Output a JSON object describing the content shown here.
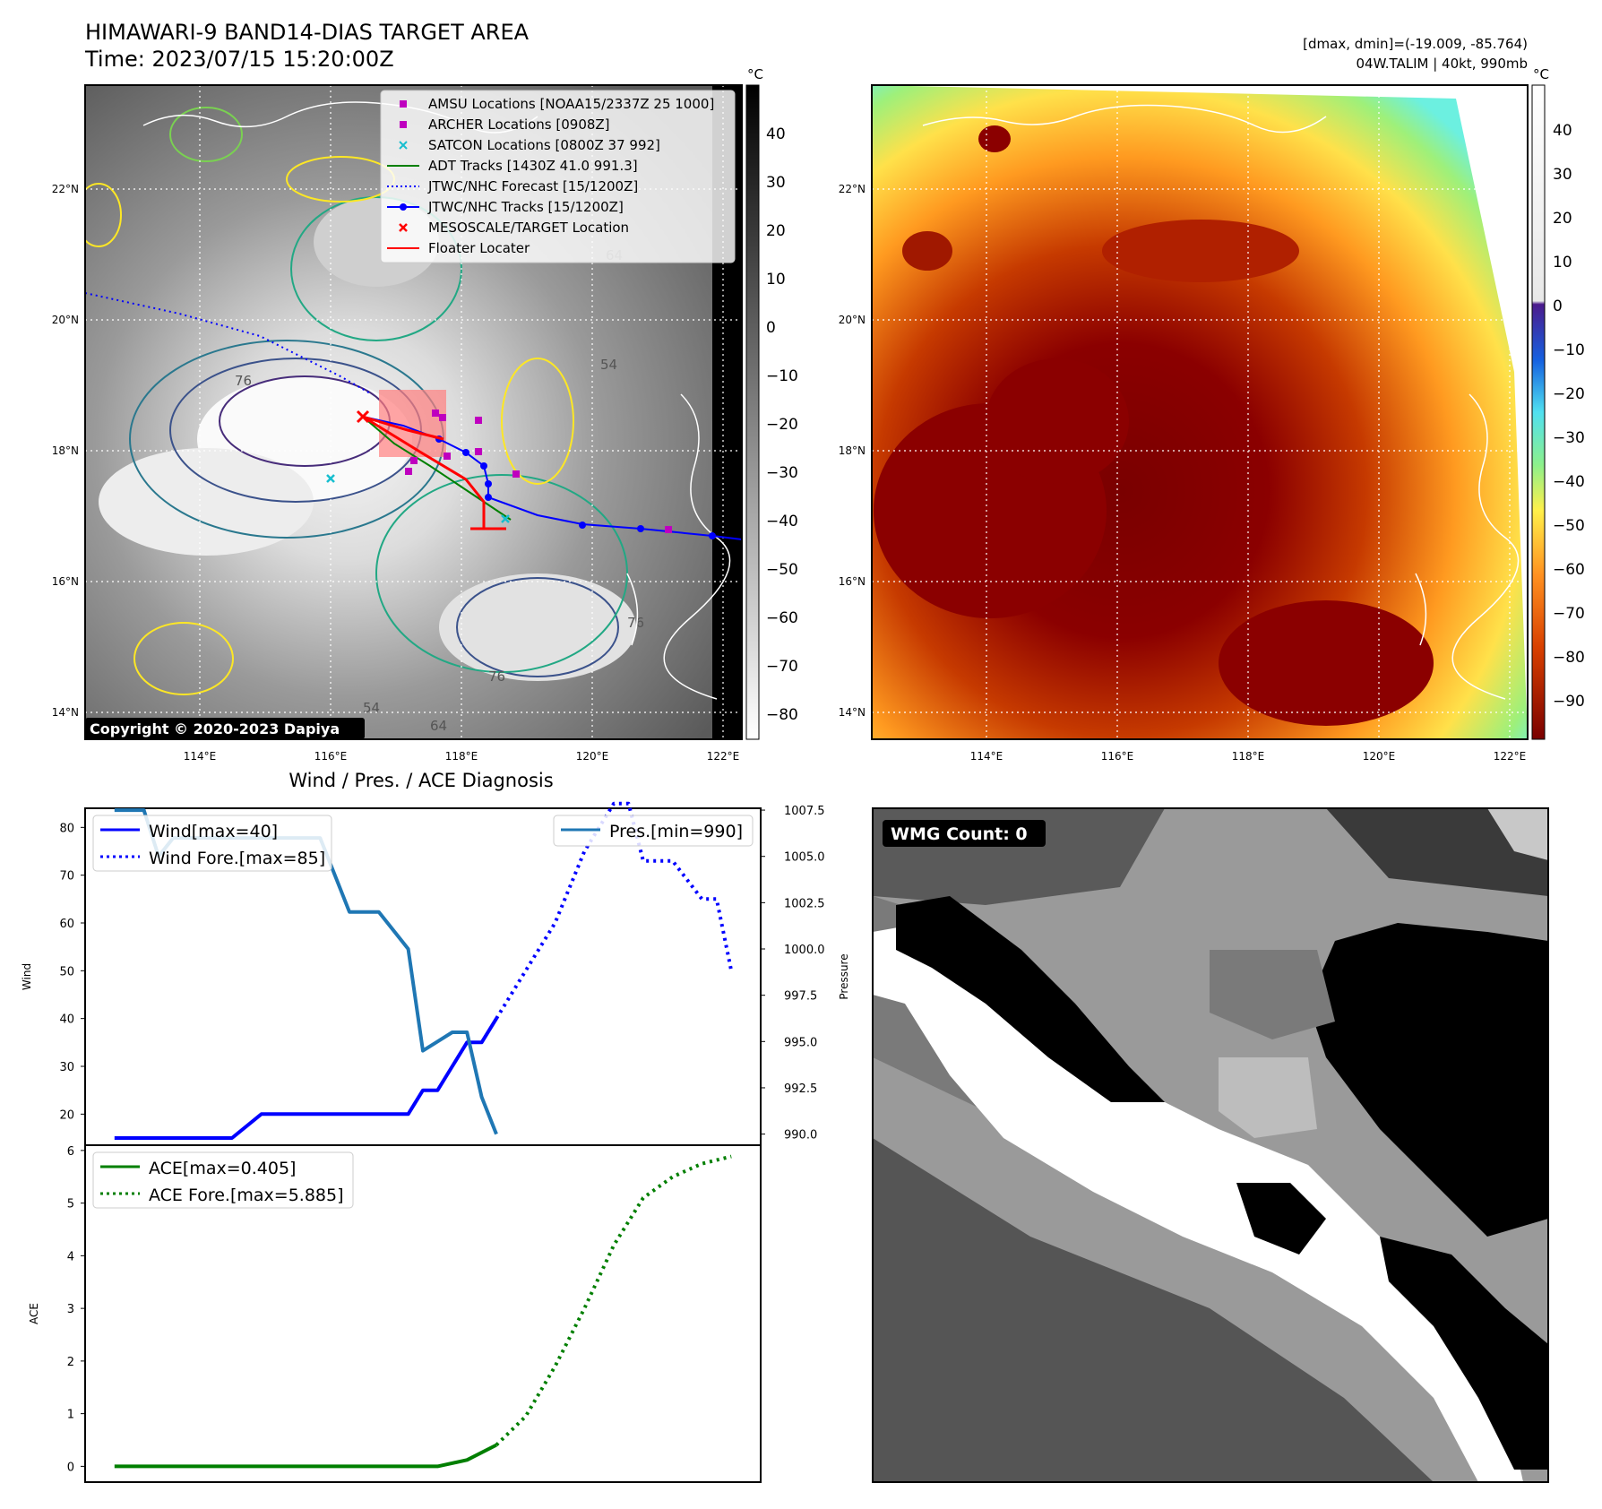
{
  "header": {
    "title": "HIMAWARI-9 BAND14-DIAS TARGET AREA",
    "time": "Time: 2023/07/15 15:20:00Z",
    "dminmax": "[dmax, dmin]=(-19.009, -85.764)",
    "storm": "04W.TALIM | 40kt, 990mb"
  },
  "map_left": {
    "lon_ticks": [
      "114°E",
      "116°E",
      "118°E",
      "120°E",
      "122°E"
    ],
    "lat_ticks": [
      "22°N",
      "20°N",
      "18°N",
      "16°N",
      "14°N"
    ],
    "colorbar_unit": "°C",
    "colorbar_ticks": [
      "40",
      "30",
      "20",
      "10",
      "0",
      "−10",
      "−20",
      "−30",
      "−40",
      "−50",
      "−60",
      "−70",
      "−80"
    ],
    "copyright": "Copyright © 2020-2023 Dapiya",
    "contour_labels": [
      "76",
      "64",
      "54",
      "76",
      "64",
      "54",
      "76"
    ],
    "legend": [
      {
        "label": "AMSU Locations [NOAA15/2337Z 25 1000]",
        "color": "#bf00bf",
        "marker": "square"
      },
      {
        "label": "ARCHER Locations [0908Z]",
        "color": "#bf00bf",
        "marker": "square"
      },
      {
        "label": "SATCON Locations [0800Z 37 992]",
        "color": "#17becf",
        "marker": "x"
      },
      {
        "label": "ADT Tracks [1430Z 41.0 991.3]",
        "color": "#007f00",
        "marker": "line"
      },
      {
        "label": "JTWC/NHC Forecast [15/1200Z]",
        "color": "#0000ff",
        "marker": "dotted"
      },
      {
        "label": "JTWC/NHC Tracks [15/1200Z]",
        "color": "#0000ff",
        "marker": "line-dot"
      },
      {
        "label": "MESOSCALE/TARGET Location",
        "color": "#ff0000",
        "marker": "x"
      },
      {
        "label": "Floater Locater",
        "color": "#ff0000",
        "marker": "line"
      }
    ]
  },
  "map_right": {
    "lon_ticks": [
      "114°E",
      "116°E",
      "118°E",
      "120°E",
      "122°E"
    ],
    "lat_ticks": [
      "22°N",
      "20°N",
      "18°N",
      "16°N",
      "14°N"
    ],
    "colorbar_unit": "°C",
    "colorbar_ticks": [
      "40",
      "30",
      "20",
      "10",
      "0",
      "−10",
      "−20",
      "−30",
      "−40",
      "−50",
      "−60",
      "−70",
      "−80",
      "−90"
    ]
  },
  "wmg": {
    "label": "WMG Count: 0"
  },
  "chart_data": [
    {
      "type": "line",
      "title": "Wind / Pres. / ACE Diagnosis",
      "ylabel": "Wind",
      "y2label": "Pressure",
      "ylim": [
        13.5,
        84
      ],
      "y2lim": [
        989.4,
        1007.6
      ],
      "xlim": [
        -1,
        22
      ],
      "yticks": [
        "20",
        "30",
        "40",
        "50",
        "60",
        "70",
        "80"
      ],
      "y2ticks": [
        "990.0",
        "992.5",
        "995.0",
        "997.5",
        "1000.0",
        "1002.5",
        "1005.0",
        "1007.5"
      ],
      "series": [
        {
          "name": "Wind[max=40]",
          "axis": "left",
          "style": "solid",
          "color": "#0000ff",
          "x": [
            0,
            1,
            2,
            3,
            4,
            5,
            6,
            7,
            8,
            9,
            10,
            10.5,
            11,
            11.5,
            12,
            12.5,
            13
          ],
          "y": [
            15,
            15,
            15,
            15,
            15,
            20,
            20,
            20,
            20,
            20,
            20,
            25,
            25,
            30,
            35,
            35,
            40
          ]
        },
        {
          "name": "Wind Fore.[max=85]",
          "axis": "left",
          "style": "dotted",
          "color": "#0000ff",
          "x": [
            13,
            14,
            15,
            16,
            17,
            17.5,
            18,
            19,
            20,
            20.5,
            21
          ],
          "y": [
            40,
            50,
            60,
            75,
            85,
            85,
            73,
            73,
            65,
            65,
            50
          ]
        },
        {
          "name": "Pres.[min=990]",
          "axis": "right",
          "style": "solid",
          "color": "#1f77b4",
          "x": [
            0,
            1,
            1.5,
            2,
            3,
            4,
            5,
            6,
            7,
            8,
            9,
            10,
            10.5,
            11,
            11.5,
            12,
            12.5,
            13
          ],
          "y": [
            1007.5,
            1007.5,
            1005,
            1006,
            1006,
            1006,
            1006,
            1006,
            1006,
            1002,
            1002,
            1000,
            994.5,
            995,
            995.5,
            995.5,
            992,
            990
          ]
        }
      ]
    },
    {
      "type": "line",
      "ylabel": "ACE",
      "ylim": [
        -0.3,
        6.1
      ],
      "xlim": [
        -1,
        22
      ],
      "yticks": [
        "0",
        "1",
        "2",
        "3",
        "4",
        "5",
        "6"
      ],
      "series": [
        {
          "name": "ACE[max=0.405]",
          "style": "solid",
          "color": "#007f00",
          "x": [
            0,
            1,
            2,
            3,
            4,
            5,
            6,
            7,
            8,
            9,
            10,
            11,
            12,
            13
          ],
          "y": [
            0,
            0,
            0,
            0,
            0,
            0,
            0,
            0,
            0,
            0,
            0,
            0,
            0.12,
            0.405
          ]
        },
        {
          "name": "ACE Fore.[max=5.885]",
          "style": "dotted",
          "color": "#007f00",
          "x": [
            13,
            14,
            15,
            16,
            17,
            18,
            19,
            20,
            21
          ],
          "y": [
            0.405,
            0.95,
            1.9,
            3.0,
            4.2,
            5.1,
            5.5,
            5.75,
            5.885
          ]
        }
      ]
    }
  ]
}
